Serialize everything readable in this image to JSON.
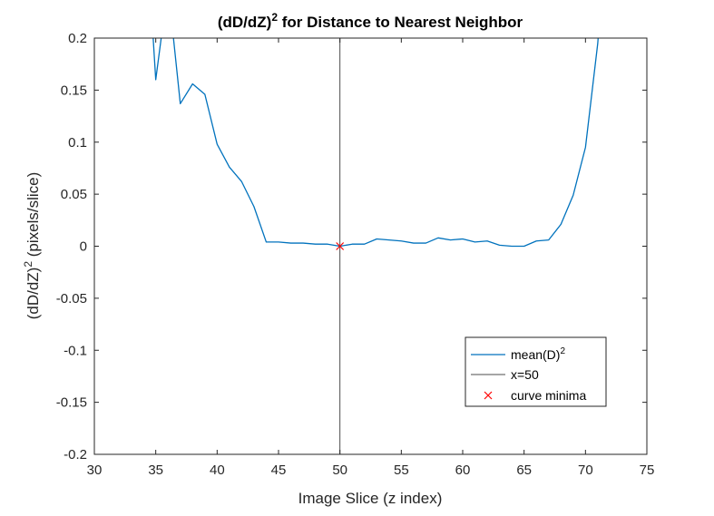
{
  "chart_data": {
    "type": "line",
    "title": "(dD/dZ)",
    "title_superscript": "2",
    "title_suffix": " for Distance to Nearest Neighbor",
    "xlabel": "Image Slice (z index)",
    "ylabel_prefix": "(dD/dZ)",
    "ylabel_superscript": "2",
    "ylabel_suffix": " (pixels/slice)",
    "xlim": [
      30,
      75
    ],
    "ylim": [
      -0.2,
      0.2
    ],
    "xticks": [
      "30",
      "35",
      "40",
      "45",
      "50",
      "55",
      "60",
      "65",
      "70",
      "75"
    ],
    "yticks": [
      "-0.2",
      "-0.15",
      "-0.1",
      "-0.05",
      "0",
      "0.05",
      "0.1",
      "0.15",
      "0.2"
    ],
    "grid": false,
    "legend_position": "lower-right",
    "series": [
      {
        "name": "mean(D)",
        "name_superscript": "2",
        "color": "#0072BD",
        "style": "line",
        "x": [
          34,
          35,
          36,
          37,
          38,
          39,
          40,
          41,
          42,
          43,
          44,
          45,
          46,
          47,
          48,
          49,
          50,
          51,
          52,
          53,
          54,
          55,
          56,
          57,
          58,
          59,
          60,
          61,
          62,
          63,
          64,
          65,
          66,
          67,
          68,
          69,
          70,
          71,
          72
        ],
        "y": [
          0.35,
          0.16,
          0.25,
          0.137,
          0.156,
          0.146,
          0.098,
          0.076,
          0.062,
          0.038,
          0.004,
          0.004,
          0.003,
          0.003,
          0.002,
          0.002,
          0.0,
          0.002,
          0.002,
          0.007,
          0.006,
          0.005,
          0.003,
          0.003,
          0.008,
          0.006,
          0.007,
          0.004,
          0.005,
          0.001,
          0.0,
          0.0,
          0.005,
          0.006,
          0.021,
          0.049,
          0.095,
          0.195,
          0.35
        ]
      },
      {
        "name": "x=50",
        "color": "#4D4D4D",
        "style": "vline",
        "x": 50
      },
      {
        "name": "curve minima",
        "color": "#FF0000",
        "style": "marker-x",
        "x": [
          50
        ],
        "y": [
          0
        ]
      }
    ]
  }
}
